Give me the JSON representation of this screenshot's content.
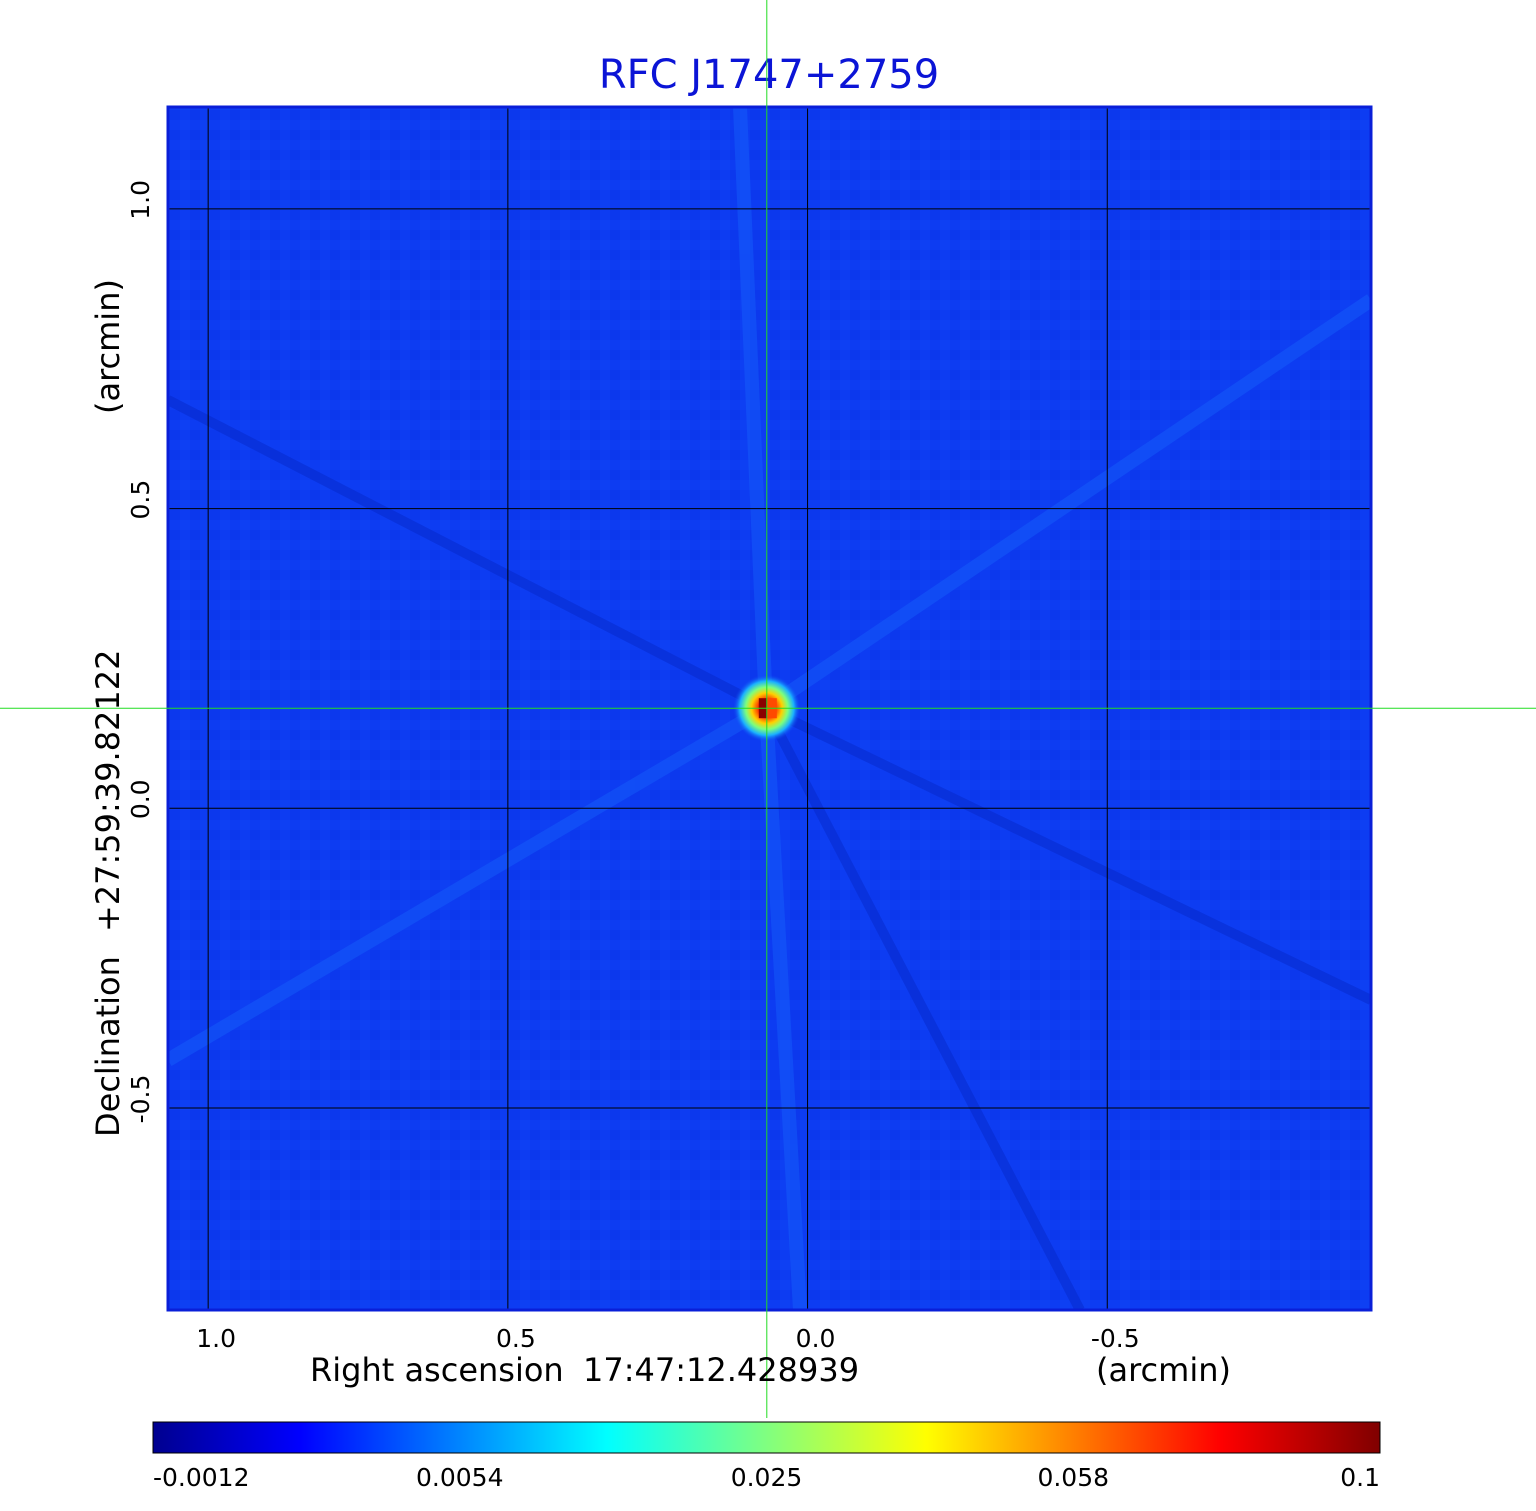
{
  "colors": {
    "title": "#0b14d6",
    "background_field": "#0d3cf2",
    "grid": "#000000",
    "crosshair": "#22dd22",
    "frame": "#0a1fd8"
  },
  "chart_data": {
    "type": "heatmap",
    "title": "RFC J1747+2759",
    "xlabel": {
      "prefix": "Right ascension",
      "center": "17:47:12.428939",
      "unit": "(arcmin)"
    },
    "ylabel": {
      "prefix": "Declination",
      "center": "+27:59:39.82122",
      "unit": "(arcmin)"
    },
    "x_ticks": [
      {
        "value": 1.0,
        "label": "1.0"
      },
      {
        "value": 0.5,
        "label": "0.5"
      },
      {
        "value": 0.0,
        "label": "0.0"
      },
      {
        "value": -0.5,
        "label": "-0.5"
      }
    ],
    "y_ticks": [
      {
        "value": 1.0,
        "label": "1.0"
      },
      {
        "value": 0.5,
        "label": "0.5"
      },
      {
        "value": 0.0,
        "label": "0.0"
      },
      {
        "value": -0.5,
        "label": "-0.5"
      }
    ],
    "xlim": [
      1.067,
      -0.94
    ],
    "ylim": [
      -0.837,
      1.17
    ],
    "x_direction": "decreasing to the right",
    "grid": true,
    "crosshair": {
      "x": 0.068,
      "y": 0.167
    },
    "source_peak": {
      "x": 0.068,
      "y": 0.167,
      "value": 0.1
    },
    "colormap": "jet",
    "colorbar": {
      "placement": "bottom",
      "scale": "nonlinear",
      "min": -0.0012,
      "max": 0.1,
      "ticks": [
        {
          "value": -0.0012,
          "label": "-0.0012"
        },
        {
          "value": 0.0054,
          "label": "0.0054"
        },
        {
          "value": 0.025,
          "label": "0.025"
        },
        {
          "value": 0.058,
          "label": "0.058"
        },
        {
          "value": 0.1,
          "label": "0.1"
        }
      ]
    }
  }
}
